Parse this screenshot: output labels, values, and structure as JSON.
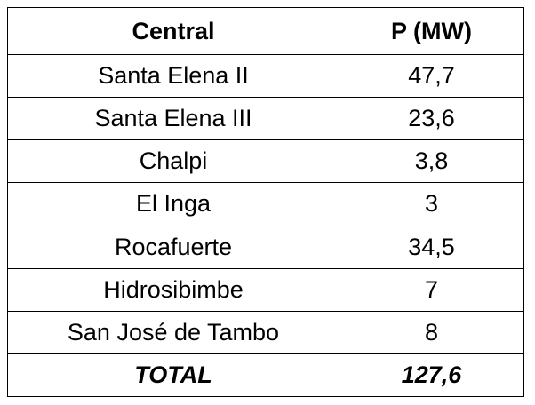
{
  "table": {
    "header": [
      "Central",
      "P (MW)"
    ],
    "rows": [
      [
        "Santa Elena II",
        "47,7"
      ],
      [
        "Santa Elena III",
        "23,6"
      ],
      [
        "Chalpi",
        "3,8"
      ],
      [
        "El Inga",
        "3"
      ],
      [
        "Rocafuerte",
        "34,5"
      ],
      [
        "Hidrosibimbe",
        "7"
      ],
      [
        "San José de Tambo",
        "8"
      ]
    ],
    "total": [
      "TOTAL",
      "127,6"
    ]
  }
}
